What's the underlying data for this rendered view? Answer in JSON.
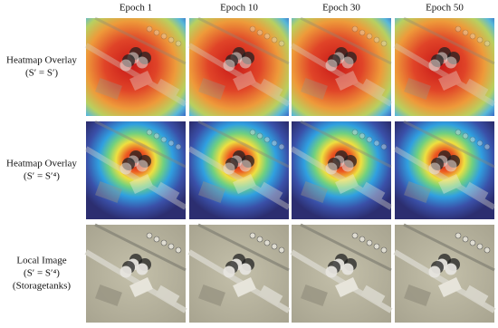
{
  "columns": [
    "Epoch 1",
    "Epoch 10",
    "Epoch 30",
    "Epoch 50"
  ],
  "rows": [
    {
      "lines": [
        "Heatmap Overlay",
        "(S′ = S′)"
      ]
    },
    {
      "lines": [
        "Heatmap Overlay",
        "(S′ = S′⁴)"
      ]
    },
    {
      "lines": [
        "Local Image",
        "(S′ = S′⁴)",
        "(Storagetanks)"
      ]
    }
  ]
}
